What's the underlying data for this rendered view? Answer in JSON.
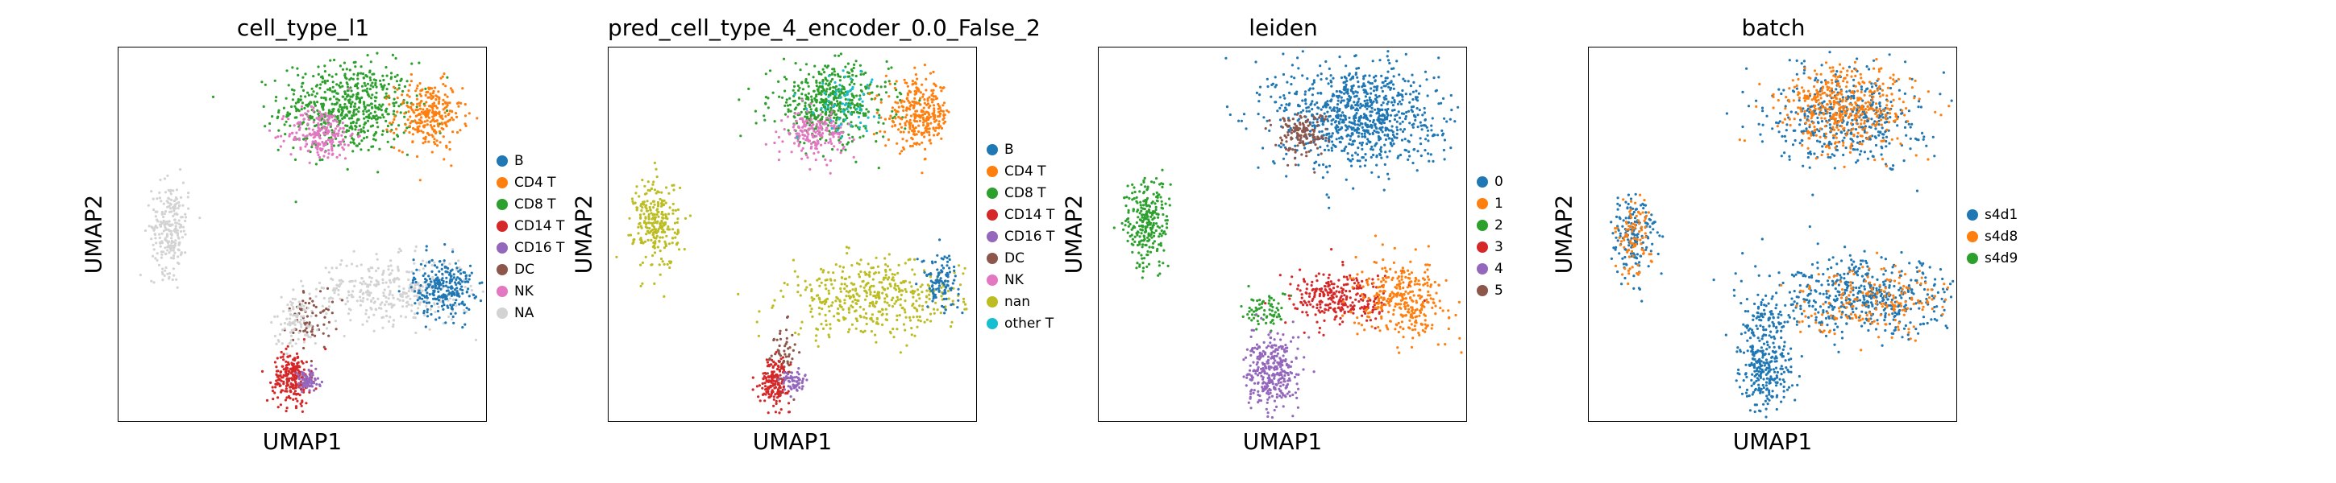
{
  "chart_data": [
    {
      "type": "scatter",
      "title": "cell_type_l1",
      "xlabel": "UMAP1",
      "ylabel": "UMAP2",
      "legend_position": "right",
      "legend": [
        {
          "label": "B",
          "color": "#1f77b4"
        },
        {
          "label": "CD4 T",
          "color": "#ff7f0e"
        },
        {
          "label": "CD8 T",
          "color": "#2ca02c"
        },
        {
          "label": "CD14 T",
          "color": "#d62728"
        },
        {
          "label": "CD16 T",
          "color": "#9467bd"
        },
        {
          "label": "DC",
          "color": "#8c564b"
        },
        {
          "label": "NK",
          "color": "#e377c2"
        },
        {
          "label": "NA",
          "color": "#d3d3d3"
        }
      ],
      "clusters": [
        {
          "label": "CD8 T",
          "x": 0.62,
          "y": 0.84,
          "sx": 0.09,
          "sy": 0.06,
          "n": 600
        },
        {
          "label": "CD4 T",
          "x": 0.84,
          "y": 0.82,
          "sx": 0.045,
          "sy": 0.045,
          "n": 280
        },
        {
          "label": "NK",
          "x": 0.55,
          "y": 0.77,
          "sx": 0.045,
          "sy": 0.035,
          "n": 200
        },
        {
          "label": "NA",
          "x": 0.14,
          "y": 0.52,
          "sx": 0.025,
          "sy": 0.06,
          "n": 240
        },
        {
          "label": "NA",
          "x": 0.74,
          "y": 0.35,
          "sx": 0.11,
          "sy": 0.045,
          "n": 350
        },
        {
          "label": "B",
          "x": 0.88,
          "y": 0.36,
          "sx": 0.04,
          "sy": 0.04,
          "n": 260
        },
        {
          "label": "DC",
          "x": 0.52,
          "y": 0.28,
          "sx": 0.03,
          "sy": 0.04,
          "n": 70
        },
        {
          "label": "NA",
          "x": 0.48,
          "y": 0.27,
          "sx": 0.03,
          "sy": 0.035,
          "n": 90
        },
        {
          "label": "CD14 T",
          "x": 0.47,
          "y": 0.12,
          "sx": 0.025,
          "sy": 0.035,
          "n": 230
        },
        {
          "label": "CD16 T",
          "x": 0.51,
          "y": 0.11,
          "sx": 0.018,
          "sy": 0.015,
          "n": 80
        }
      ]
    },
    {
      "type": "scatter",
      "title": "pred_cell_type_4_encoder_0.0_False_2",
      "xlabel": "UMAP1",
      "ylabel": "UMAP2",
      "legend_position": "right",
      "legend": [
        {
          "label": "B",
          "color": "#1f77b4"
        },
        {
          "label": "CD4 T",
          "color": "#ff7f0e"
        },
        {
          "label": "CD8 T",
          "color": "#2ca02c"
        },
        {
          "label": "CD14 T",
          "color": "#d62728"
        },
        {
          "label": "CD16 T",
          "color": "#9467bd"
        },
        {
          "label": "DC",
          "color": "#8c564b"
        },
        {
          "label": "NK",
          "color": "#e377c2"
        },
        {
          "label": "nan",
          "color": "#bcbd22"
        },
        {
          "label": "other T",
          "color": "#17becf"
        }
      ],
      "clusters": [
        {
          "label": "CD8 T",
          "x": 0.6,
          "y": 0.85,
          "sx": 0.08,
          "sy": 0.05,
          "n": 500
        },
        {
          "label": "CD4 T",
          "x": 0.84,
          "y": 0.82,
          "sx": 0.045,
          "sy": 0.045,
          "n": 300
        },
        {
          "label": "NK",
          "x": 0.56,
          "y": 0.77,
          "sx": 0.04,
          "sy": 0.03,
          "n": 180
        },
        {
          "label": "other T",
          "x": 0.63,
          "y": 0.86,
          "sx": 0.05,
          "sy": 0.04,
          "n": 70
        },
        {
          "label": "nan",
          "x": 0.13,
          "y": 0.53,
          "sx": 0.03,
          "sy": 0.06,
          "n": 260
        },
        {
          "label": "nan",
          "x": 0.72,
          "y": 0.33,
          "sx": 0.12,
          "sy": 0.05,
          "n": 450
        },
        {
          "label": "B",
          "x": 0.9,
          "y": 0.38,
          "sx": 0.025,
          "sy": 0.035,
          "n": 110
        },
        {
          "label": "DC",
          "x": 0.47,
          "y": 0.18,
          "sx": 0.02,
          "sy": 0.04,
          "n": 60
        },
        {
          "label": "CD14 T",
          "x": 0.45,
          "y": 0.11,
          "sx": 0.02,
          "sy": 0.03,
          "n": 170
        },
        {
          "label": "CD16 T",
          "x": 0.5,
          "y": 0.11,
          "sx": 0.015,
          "sy": 0.015,
          "n": 60
        }
      ]
    },
    {
      "type": "scatter",
      "title": "leiden",
      "xlabel": "UMAP1",
      "ylabel": "UMAP2",
      "legend_position": "right",
      "legend": [
        {
          "label": "0",
          "color": "#1f77b4"
        },
        {
          "label": "1",
          "color": "#ff7f0e"
        },
        {
          "label": "2",
          "color": "#2ca02c"
        },
        {
          "label": "3",
          "color": "#d62728"
        },
        {
          "label": "4",
          "color": "#9467bd"
        },
        {
          "label": "5",
          "color": "#8c564b"
        }
      ],
      "clusters": [
        {
          "label": "0",
          "x": 0.7,
          "y": 0.82,
          "sx": 0.11,
          "sy": 0.07,
          "n": 900
        },
        {
          "label": "5",
          "x": 0.55,
          "y": 0.77,
          "sx": 0.035,
          "sy": 0.03,
          "n": 140
        },
        {
          "label": "2",
          "x": 0.13,
          "y": 0.53,
          "sx": 0.03,
          "sy": 0.06,
          "n": 260
        },
        {
          "label": "2",
          "x": 0.45,
          "y": 0.3,
          "sx": 0.03,
          "sy": 0.025,
          "n": 70
        },
        {
          "label": "3",
          "x": 0.66,
          "y": 0.33,
          "sx": 0.07,
          "sy": 0.035,
          "n": 280
        },
        {
          "label": "1",
          "x": 0.82,
          "y": 0.33,
          "sx": 0.06,
          "sy": 0.05,
          "n": 340
        },
        {
          "label": "4",
          "x": 0.47,
          "y": 0.13,
          "sx": 0.035,
          "sy": 0.05,
          "n": 330
        }
      ]
    },
    {
      "type": "scatter",
      "title": "batch",
      "xlabel": "UMAP1",
      "ylabel": "UMAP2",
      "legend_position": "right",
      "legend": [
        {
          "label": "s4d1",
          "color": "#1f77b4"
        },
        {
          "label": "s4d8",
          "color": "#ff7f0e"
        },
        {
          "label": "s4d9",
          "color": "#2ca02c"
        }
      ],
      "clusters": [
        {
          "label": "s4d1",
          "x": 0.7,
          "y": 0.82,
          "sx": 0.1,
          "sy": 0.065,
          "n": 450
        },
        {
          "label": "s4d8",
          "x": 0.7,
          "y": 0.84,
          "sx": 0.09,
          "sy": 0.055,
          "n": 450
        },
        {
          "label": "s4d1",
          "x": 0.12,
          "y": 0.5,
          "sx": 0.03,
          "sy": 0.06,
          "n": 160
        },
        {
          "label": "s4d8",
          "x": 0.12,
          "y": 0.49,
          "sx": 0.025,
          "sy": 0.05,
          "n": 90
        },
        {
          "label": "s4d1",
          "x": 0.75,
          "y": 0.33,
          "sx": 0.13,
          "sy": 0.05,
          "n": 500
        },
        {
          "label": "s4d8",
          "x": 0.77,
          "y": 0.33,
          "sx": 0.1,
          "sy": 0.045,
          "n": 200
        },
        {
          "label": "s4d1",
          "x": 0.48,
          "y": 0.15,
          "sx": 0.035,
          "sy": 0.06,
          "n": 280
        },
        {
          "label": "s4d1",
          "x": 0.47,
          "y": 0.28,
          "sx": 0.025,
          "sy": 0.03,
          "n": 60
        }
      ]
    }
  ]
}
